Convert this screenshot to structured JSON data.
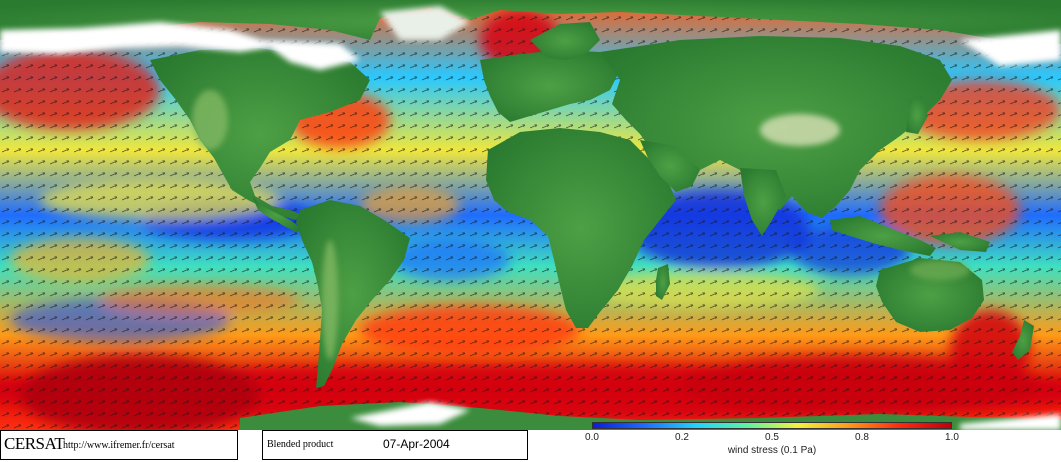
{
  "map": {
    "title": "",
    "colors": {
      "ocean_scale": [
        "#0a1fd6",
        "#1f6cff",
        "#21d2ff",
        "#5cf2a3",
        "#f2f23c",
        "#ff9a17",
        "#ff2a10",
        "#c0000a"
      ],
      "land": [
        "#2f7d34",
        "#3c9440",
        "#67ad55",
        "#9ec57a"
      ],
      "ice": "#ffffff",
      "arrows": "#1a1a1a"
    },
    "icons": [
      "wind-arrow-icon"
    ]
  },
  "footer": {
    "logo": "CERSAT",
    "url": "http://www.ifremer.fr/cersat",
    "product": "Blended product",
    "date": "07-Apr-2004"
  },
  "colorbar": {
    "ticks": [
      "0.0",
      "0.2",
      "0.5",
      "0.8",
      "1.0"
    ],
    "title": "wind stress (0.1 Pa)",
    "colors": [
      "#0a1fd6",
      "#1f6cff",
      "#21d2ff",
      "#5cf2a3",
      "#f2f23c",
      "#ff9a17",
      "#ff2a10",
      "#c0000a"
    ]
  }
}
